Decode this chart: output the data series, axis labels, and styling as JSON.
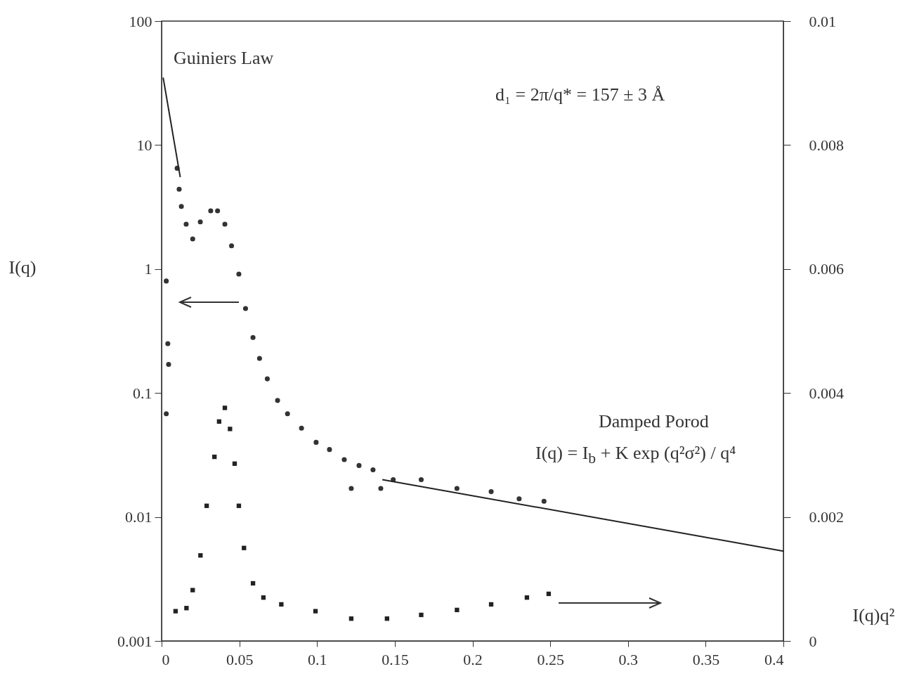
{
  "chart_data": {
    "type": "scatter",
    "ylabel": "I(q)",
    "y2label": "I(q)q²",
    "log": "y",
    "grid": false,
    "xlim": [
      0,
      0.4
    ],
    "xticks": [
      0,
      0.05,
      0.1,
      0.15,
      0.2,
      0.25,
      0.3,
      0.35,
      0.4
    ],
    "ylim": [
      0.001,
      100
    ],
    "yticks": [
      0.001,
      0.01,
      0.1,
      1,
      10,
      100
    ],
    "y2lim": [
      0,
      0.01
    ],
    "y2ticks": [
      0,
      0.002,
      0.004,
      0.006,
      0.008,
      0.01
    ],
    "annotations": [
      "Guiniers Law",
      "d₁ = 2π/q* = 157 ± 3 Å",
      "Damped Porod",
      "I(q) = I$_{b}$ +  K exp (q²σ²) / q⁴"
    ],
    "series": [
      {
        "marker": "circle",
        "color": "#333333",
        "x": [
          0.003,
          0.004,
          0.0045,
          0.003,
          0.01,
          0.0113,
          0.0127,
          0.0158,
          0.02,
          0.0249,
          0.0316,
          0.036,
          0.0407,
          0.045,
          0.0497,
          0.054,
          0.0588,
          0.063,
          0.068,
          0.0746,
          0.081,
          0.09,
          0.0994,
          0.108,
          0.1175,
          0.127,
          0.136,
          0.122,
          0.141,
          0.149,
          0.167,
          0.19,
          0.212,
          0.23,
          0.246
        ],
        "values": [
          0.8,
          0.25,
          0.17,
          0.068,
          6.5,
          4.4,
          3.2,
          2.3,
          1.75,
          2.4,
          2.95,
          2.95,
          2.3,
          1.54,
          0.91,
          0.48,
          0.28,
          0.19,
          0.13,
          0.087,
          0.068,
          0.052,
          0.04,
          0.035,
          0.029,
          0.026,
          0.024,
          0.017,
          0.017,
          0.02,
          0.02,
          0.017,
          0.016,
          0.014,
          0.0134
        ]
      },
      {
        "marker": "square",
        "axis": "y2",
        "color": "#222222",
        "x": [
          0.009,
          0.016,
          0.02,
          0.025,
          0.029,
          0.034,
          0.037,
          0.0407,
          0.044,
          0.047,
          0.0497,
          0.053,
          0.0588,
          0.0655,
          0.077,
          0.099,
          0.122,
          0.145,
          0.167,
          0.19,
          0.212,
          0.235,
          0.249
        ],
        "values": [
          0.00048,
          0.00053,
          0.00082,
          0.00138,
          0.00218,
          0.00297,
          0.00354,
          0.00376,
          0.00342,
          0.00286,
          0.00218,
          0.0015,
          0.00093,
          0.0007,
          0.00059,
          0.00048,
          0.00036,
          0.00036,
          0.00042,
          0.0005,
          0.00059,
          0.0007,
          0.00076
        ]
      },
      {
        "type": "line",
        "line_style": "solid",
        "color": "#222222",
        "x": [
          0.001,
          0.012
        ],
        "values": [
          35,
          5.5
        ]
      },
      {
        "type": "line",
        "line_style": "solid",
        "color": "#222222",
        "x": [
          0.142,
          0.4
        ],
        "values": [
          0.02,
          0.0053
        ]
      }
    ]
  }
}
